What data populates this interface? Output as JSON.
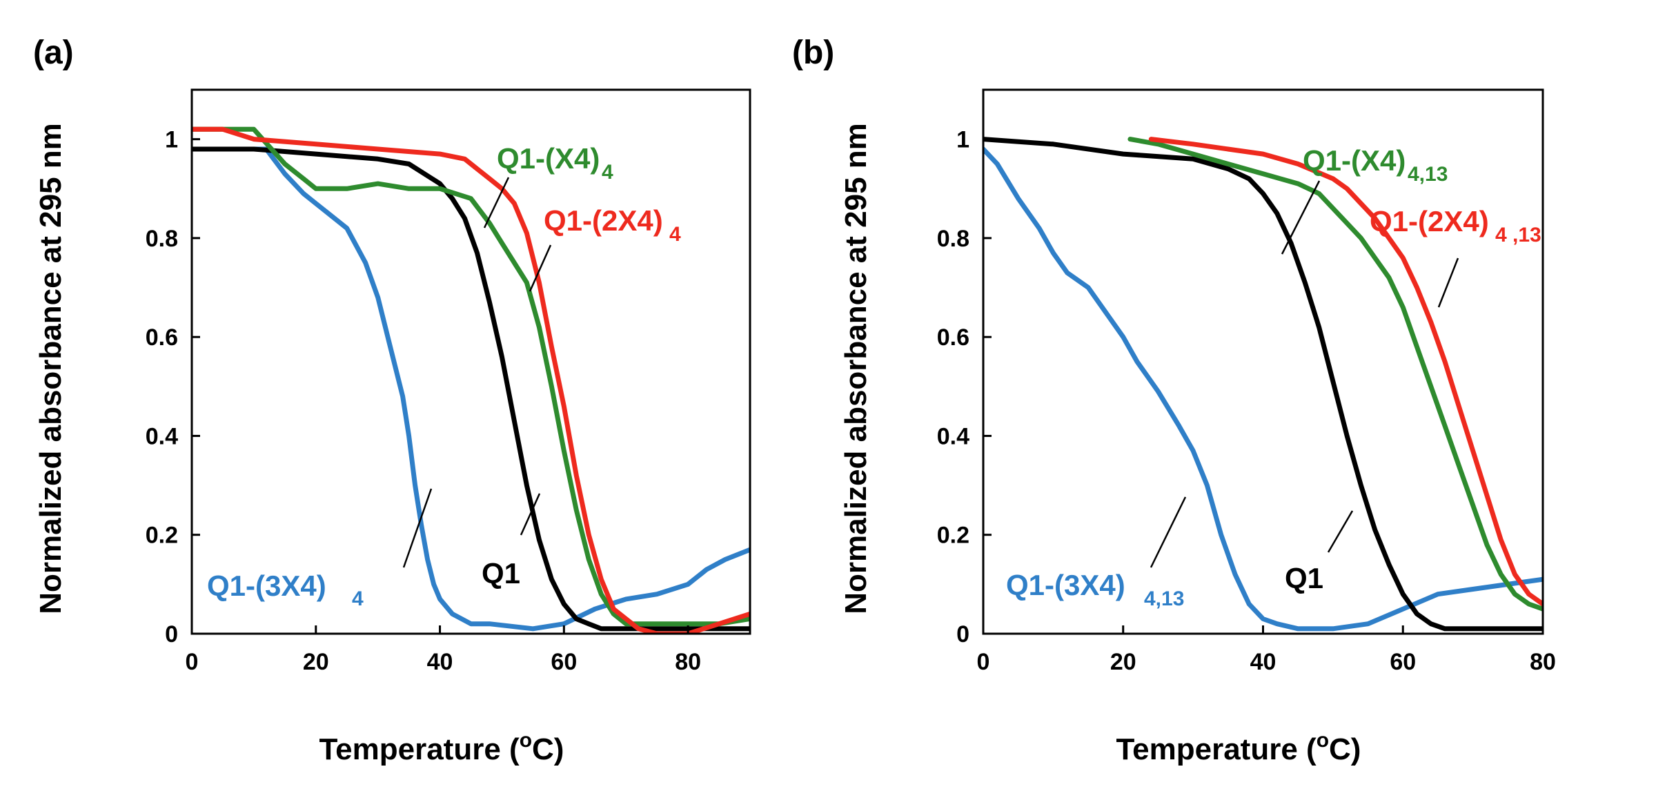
{
  "chart_data": [
    {
      "type": "line",
      "panel_label": "(a)",
      "xlabel": "Temperature (",
      "xlabel_sup": "o",
      "xlabel_tail": "C)",
      "ylabel": "Normalized absorbance at 295 nm",
      "xlim": [
        0,
        90
      ],
      "ylim": [
        0,
        1.1
      ],
      "xticks": [
        0,
        20,
        40,
        60,
        80
      ],
      "yticks": [
        0,
        0.2,
        0.4,
        0.6,
        0.8,
        1
      ],
      "ytick_labels": [
        "0",
        "0.2",
        "0.4",
        "0.6",
        "0.8",
        "1"
      ],
      "series": [
        {
          "name": "Q1-(3X4)4",
          "label_main": "Q1-(3X4)",
          "label_sub": "4",
          "color": "#2f7fc8",
          "x": [
            0,
            10,
            12,
            15,
            18,
            20,
            22,
            25,
            28,
            30,
            32,
            34,
            35,
            36,
            37,
            38,
            39,
            40,
            42,
            45,
            48,
            55,
            60,
            65,
            70,
            75,
            80,
            83,
            86,
            88,
            90
          ],
          "y": [
            0.98,
            0.98,
            0.98,
            0.93,
            0.89,
            0.87,
            0.85,
            0.82,
            0.75,
            0.68,
            0.58,
            0.48,
            0.4,
            0.3,
            0.22,
            0.15,
            0.1,
            0.07,
            0.04,
            0.02,
            0.02,
            0.01,
            0.02,
            0.05,
            0.07,
            0.08,
            0.1,
            0.13,
            0.15,
            0.16,
            0.17
          ]
        },
        {
          "name": "Q1",
          "label_main": "Q1",
          "label_sub": "",
          "color": "#000000",
          "x": [
            0,
            10,
            20,
            30,
            35,
            40,
            42,
            44,
            46,
            48,
            50,
            52,
            54,
            56,
            58,
            60,
            62,
            64,
            66,
            70,
            80,
            90
          ],
          "y": [
            0.98,
            0.98,
            0.97,
            0.96,
            0.95,
            0.91,
            0.88,
            0.84,
            0.77,
            0.67,
            0.56,
            0.43,
            0.3,
            0.19,
            0.11,
            0.06,
            0.03,
            0.02,
            0.01,
            0.01,
            0.01,
            0.01
          ]
        },
        {
          "name": "Q1-(X4)4",
          "label_main": "Q1-(X4)",
          "label_sub": "4",
          "color": "#2e8b2e",
          "x": [
            0,
            5,
            10,
            15,
            18,
            20,
            25,
            30,
            35,
            40,
            45,
            48,
            50,
            52,
            54,
            56,
            58,
            60,
            62,
            64,
            66,
            68,
            70,
            75,
            80,
            85,
            90
          ],
          "y": [
            1.02,
            1.02,
            1.02,
            0.95,
            0.92,
            0.9,
            0.9,
            0.91,
            0.9,
            0.9,
            0.88,
            0.83,
            0.79,
            0.75,
            0.71,
            0.62,
            0.5,
            0.37,
            0.25,
            0.15,
            0.08,
            0.04,
            0.02,
            0.02,
            0.02,
            0.02,
            0.03
          ]
        },
        {
          "name": "Q1-(2X4)4",
          "label_main": "Q1-(2X4)",
          "label_sub": "4",
          "color": "#ee2a1e",
          "x": [
            0,
            5,
            10,
            20,
            30,
            40,
            44,
            46,
            48,
            50,
            52,
            54,
            56,
            58,
            60,
            62,
            64,
            66,
            68,
            70,
            72,
            75,
            80,
            85,
            90
          ],
          "y": [
            1.02,
            1.02,
            1.0,
            0.99,
            0.98,
            0.97,
            0.96,
            0.94,
            0.92,
            0.9,
            0.87,
            0.81,
            0.71,
            0.58,
            0.46,
            0.32,
            0.2,
            0.11,
            0.05,
            0.03,
            0.01,
            0.0,
            0.0,
            0.02,
            0.04
          ]
        }
      ],
      "annotations": [
        {
          "series": "Q1-(3X4)4",
          "text": "Q1-(3X4)",
          "sub": "4"
        },
        {
          "series": "Q1",
          "text": "Q1",
          "sub": ""
        },
        {
          "series": "Q1-(X4)4",
          "text": "Q1-(X4)",
          "sub": "4"
        },
        {
          "series": "Q1-(2X4)4",
          "text": "Q1-(2X4)",
          "sub": "4"
        }
      ]
    },
    {
      "type": "line",
      "panel_label": "(b)",
      "xlabel": "Temperature (",
      "xlabel_sup": "o",
      "xlabel_tail": "C)",
      "ylabel": "Normalized absorbance at 295 nm",
      "xlim": [
        0,
        80
      ],
      "ylim": [
        0,
        1.1
      ],
      "xticks": [
        0,
        20,
        40,
        60,
        80
      ],
      "yticks": [
        0,
        0.2,
        0.4,
        0.6,
        0.8,
        1
      ],
      "ytick_labels": [
        "0",
        "0.2",
        "0.4",
        "0.6",
        "0.8",
        "1"
      ],
      "series": [
        {
          "name": "Q1-(3X4)4,13",
          "color": "#2f7fc8",
          "x": [
            0,
            2,
            5,
            8,
            10,
            12,
            15,
            18,
            20,
            22,
            25,
            28,
            30,
            32,
            34,
            36,
            38,
            40,
            42,
            45,
            50,
            55,
            60,
            65,
            70,
            75,
            80
          ],
          "y": [
            0.98,
            0.95,
            0.88,
            0.82,
            0.77,
            0.73,
            0.7,
            0.64,
            0.6,
            0.55,
            0.49,
            0.42,
            0.37,
            0.3,
            0.2,
            0.12,
            0.06,
            0.03,
            0.02,
            0.01,
            0.01,
            0.02,
            0.05,
            0.08,
            0.09,
            0.1,
            0.11
          ]
        },
        {
          "name": "Q1",
          "color": "#000000",
          "x": [
            0,
            10,
            20,
            30,
            35,
            38,
            40,
            42,
            44,
            46,
            48,
            50,
            52,
            54,
            56,
            58,
            60,
            62,
            64,
            66,
            68,
            70,
            80
          ],
          "y": [
            1.0,
            0.99,
            0.97,
            0.96,
            0.94,
            0.92,
            0.89,
            0.85,
            0.79,
            0.71,
            0.62,
            0.51,
            0.4,
            0.3,
            0.21,
            0.14,
            0.08,
            0.04,
            0.02,
            0.01,
            0.01,
            0.01,
            0.01
          ]
        },
        {
          "name": "Q1-(X4)4,13",
          "color": "#2e8b2e",
          "x": [
            21,
            25,
            30,
            35,
            40,
            45,
            48,
            50,
            52,
            54,
            56,
            58,
            60,
            62,
            64,
            66,
            68,
            70,
            72,
            74,
            76,
            78,
            80
          ],
          "y": [
            1.0,
            0.99,
            0.97,
            0.95,
            0.93,
            0.91,
            0.89,
            0.86,
            0.83,
            0.8,
            0.76,
            0.72,
            0.66,
            0.58,
            0.5,
            0.42,
            0.34,
            0.26,
            0.18,
            0.12,
            0.08,
            0.06,
            0.05
          ]
        },
        {
          "name": "Q1-(2X4)4,13",
          "color": "#ee2a1e",
          "x": [
            24,
            30,
            35,
            40,
            45,
            50,
            52,
            54,
            56,
            58,
            60,
            62,
            64,
            66,
            68,
            70,
            72,
            74,
            76,
            78,
            80
          ],
          "y": [
            1.0,
            0.99,
            0.98,
            0.97,
            0.95,
            0.92,
            0.9,
            0.87,
            0.84,
            0.8,
            0.76,
            0.7,
            0.63,
            0.55,
            0.46,
            0.37,
            0.28,
            0.19,
            0.12,
            0.08,
            0.06
          ]
        }
      ],
      "annotations": [
        {
          "series": "Q1-(3X4)4,13",
          "text": "Q1-(3X4)",
          "sub": "4,13"
        },
        {
          "series": "Q1",
          "text": "Q1",
          "sub": ""
        },
        {
          "series": "Q1-(X4)4,13",
          "text": "Q1-(X4)",
          "sub": "4,13"
        },
        {
          "series": "Q1-(2X4)4,13",
          "text": "Q1-(2X4)",
          "sub": "4 ,13"
        }
      ]
    }
  ]
}
